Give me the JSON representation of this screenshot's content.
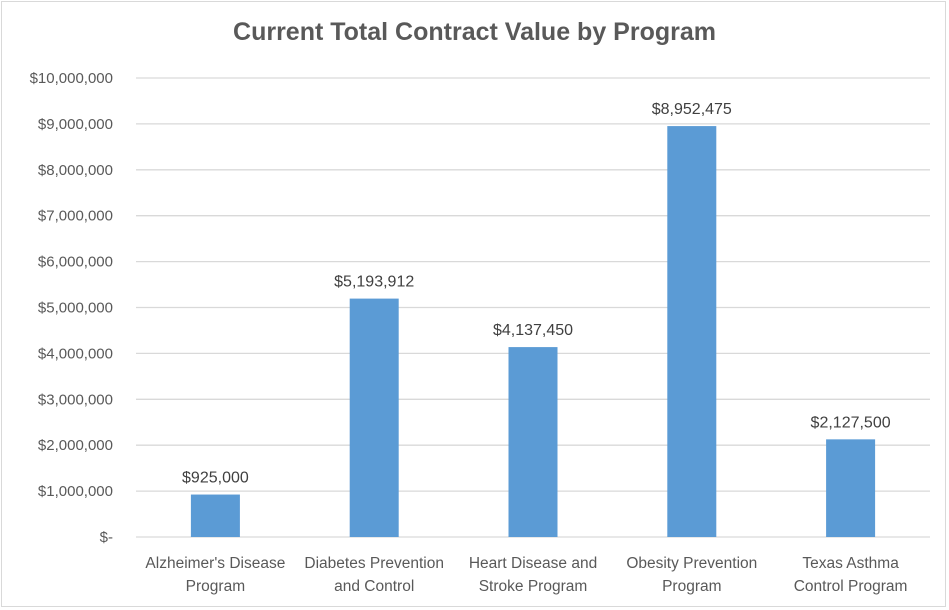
{
  "chart_data": {
    "type": "bar",
    "title": "Current Total Contract Value by Program",
    "categories": [
      [
        "Alzheimer's Disease",
        "Program"
      ],
      [
        "Diabetes Prevention",
        "and Control"
      ],
      [
        "Heart Disease and",
        "Stroke Program"
      ],
      [
        "Obesity Prevention",
        "Program"
      ],
      [
        "Texas Asthma",
        "Control Program"
      ]
    ],
    "values": [
      925000,
      5193912,
      4137450,
      8952475,
      2127500
    ],
    "data_labels": [
      "$925,000",
      "$5,193,912",
      "$4,137,450",
      "$8,952,475",
      "$2,127,500"
    ],
    "ylim": [
      0,
      10000000
    ],
    "yticks": [
      0,
      1000000,
      2000000,
      3000000,
      4000000,
      5000000,
      6000000,
      7000000,
      8000000,
      9000000,
      10000000
    ],
    "ytick_labels": [
      "$-",
      "$1,000,000",
      "$2,000,000",
      "$3,000,000",
      "$4,000,000",
      "$5,000,000",
      "$6,000,000",
      "$7,000,000",
      "$8,000,000",
      "$9,000,000",
      "$10,000,000"
    ],
    "grid": true,
    "bar_color": "#5b9bd5",
    "grid_color": "#d9d9d9"
  }
}
